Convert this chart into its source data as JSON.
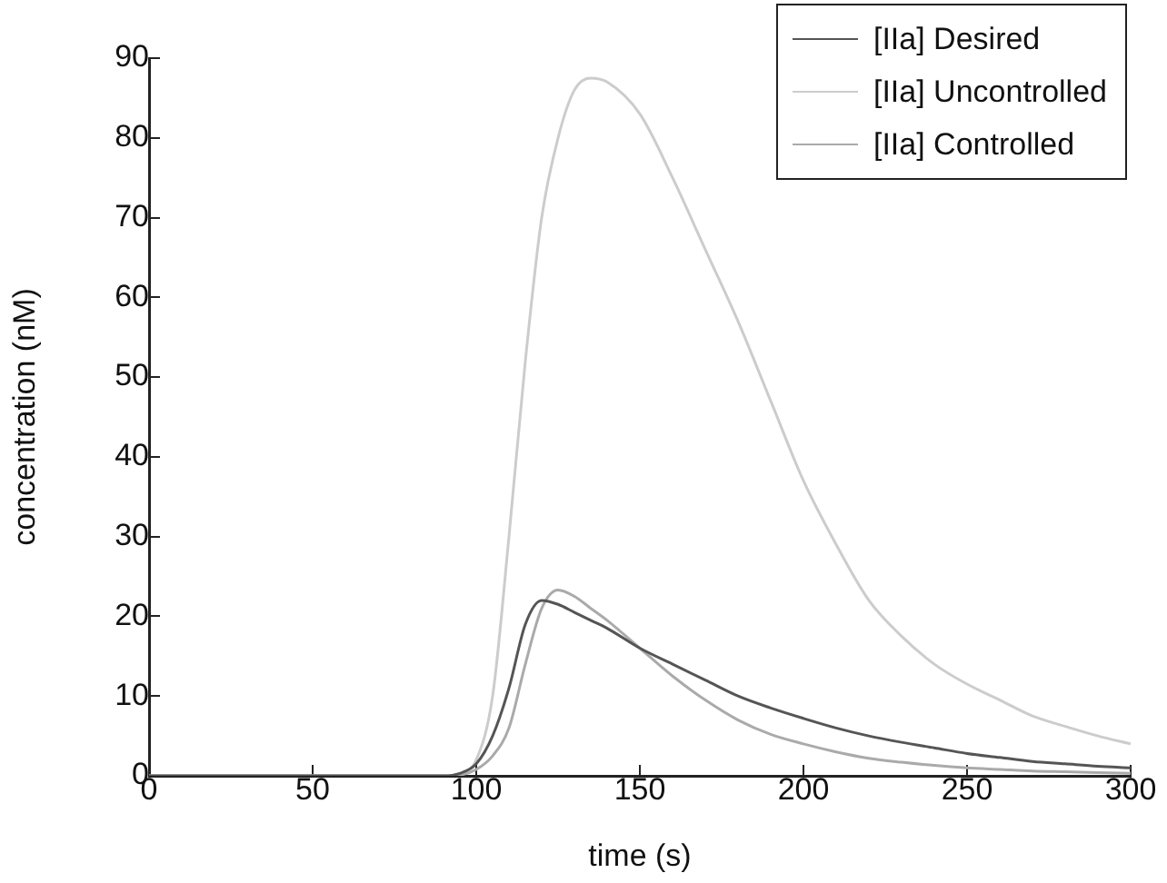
{
  "chart_data": {
    "type": "line",
    "xlabel": "time (s)",
    "ylabel": "concentration (nM)",
    "xlim": [
      0,
      300
    ],
    "xticks": [
      0,
      50,
      100,
      150,
      200,
      250,
      300
    ],
    "ylim": [
      0,
      90
    ],
    "yticks": [
      0,
      10,
      20,
      30,
      40,
      50,
      60,
      70,
      80,
      90
    ],
    "grid": false,
    "legend": "top right",
    "marker": "none",
    "line_style": "solid",
    "x": [
      0,
      50,
      90,
      95,
      100,
      105,
      110,
      115,
      120,
      125,
      130,
      135,
      140,
      150,
      160,
      170,
      180,
      190,
      200,
      210,
      220,
      230,
      240,
      250,
      260,
      270,
      280,
      290,
      300
    ],
    "series": [
      {
        "name": "[IIa] Desired",
        "color": "#555555",
        "values": [
          0,
          0,
          0,
          0.3,
          1.5,
          5,
          11,
          19,
          22,
          21.5,
          20.5,
          19.5,
          18.5,
          16,
          14,
          12,
          10,
          8.5,
          7.2,
          6,
          5,
          4.2,
          3.5,
          2.8,
          2.3,
          1.8,
          1.5,
          1.2,
          1
        ]
      },
      {
        "name": "[IIa] Uncontrolled",
        "color": "#cccccc",
        "values": [
          0,
          0,
          0,
          0.3,
          2,
          10,
          30,
          52,
          70,
          80,
          86,
          87.5,
          87,
          83,
          75,
          66,
          57,
          47,
          37,
          29,
          22,
          17.5,
          14,
          11.5,
          9.5,
          7.5,
          6.2,
          5,
          4
        ]
      },
      {
        "name": "[IIa] Controlled",
        "color": "#aaaaaa",
        "values": [
          0,
          0,
          0,
          0.1,
          0.8,
          2.5,
          6,
          14,
          21,
          23.3,
          22.5,
          21,
          19.5,
          16,
          12.5,
          9.5,
          7,
          5.2,
          4,
          3,
          2.2,
          1.7,
          1.3,
          1,
          0.8,
          0.6,
          0.5,
          0.4,
          0.3
        ]
      }
    ]
  }
}
